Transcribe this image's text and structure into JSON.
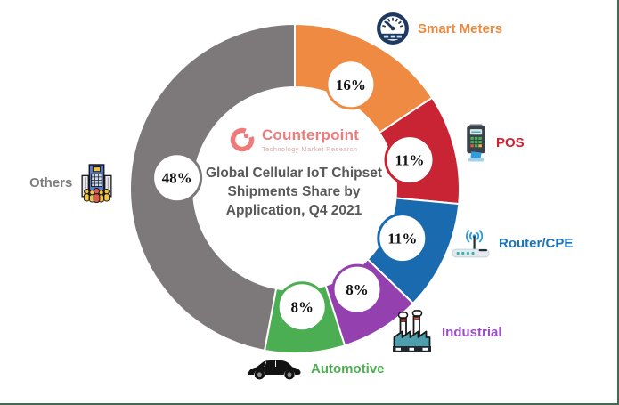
{
  "page": {
    "background": "#ffffff",
    "border_color": "#3E6B51"
  },
  "logo": {
    "name": "Counterpoint",
    "tagline": "Technology Market Research",
    "name_color": "#EE7B7B",
    "tagline_color": "#DFA9A9"
  },
  "title": {
    "lines": [
      "Global Cellular IoT Chipset",
      "Shipments Share by",
      "Application, Q4 2021"
    ],
    "color": "#595959"
  },
  "chart_data": {
    "type": "pie",
    "subtype": "donut",
    "title": "Global Cellular IoT Chipset Shipments Share by Application, Q4 2021",
    "unit": "%",
    "direction": "clockwise",
    "start_angle": "12 o'clock",
    "legend_position": "around chart, each slice labeled with icon",
    "segments": [
      {
        "label": "Smart Meters",
        "value": 16,
        "display": "16%",
        "color": "#EF8A43",
        "label_color": "#F0883C",
        "icon": "smart-meter-gauge-icon"
      },
      {
        "label": "POS",
        "value": 11,
        "display": "11%",
        "color": "#C92433",
        "label_color": "#D22030",
        "icon": "pos-terminal-icon"
      },
      {
        "label": "Router/CPE",
        "value": 11,
        "display": "11%",
        "color": "#1A6AAF",
        "label_color": "#1B74BC",
        "icon": "router-icon"
      },
      {
        "label": "Industrial",
        "value": 8,
        "display": "8%",
        "color": "#9440AE",
        "label_color": "#9C4EC4",
        "icon": "factory-icon"
      },
      {
        "label": "Automotive",
        "value": 8,
        "display": "8%",
        "color": "#4CAE52",
        "label_color": "#4CAF50",
        "icon": "car-icon"
      },
      {
        "label": "Others",
        "value": 48,
        "display": "48%",
        "color": "#7D797A",
        "label_color": "#7E7E7E",
        "icon": "building-icon"
      }
    ]
  }
}
